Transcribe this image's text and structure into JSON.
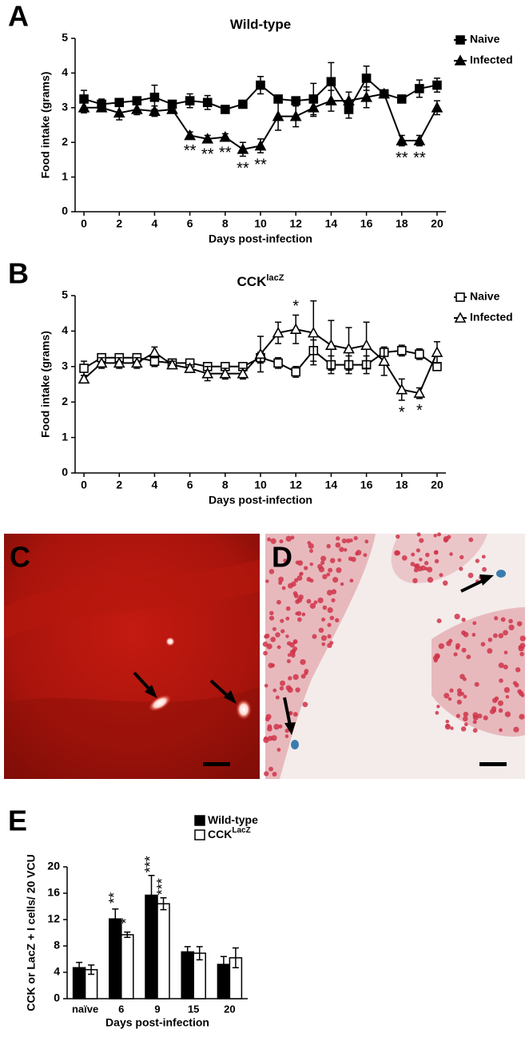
{
  "chart_data": [
    {
      "type": "line",
      "panel": "A",
      "title": "Wild-type",
      "xlabel": "Days post-infection",
      "ylabel": "Food intake (grams)",
      "x": [
        0,
        1,
        2,
        3,
        4,
        5,
        6,
        7,
        8,
        9,
        10,
        11,
        12,
        13,
        14,
        15,
        16,
        17,
        18,
        19,
        20
      ],
      "xlim": [
        -0.5,
        20.5
      ],
      "xticks": [
        0,
        2,
        4,
        6,
        8,
        10,
        12,
        14,
        16,
        18,
        20
      ],
      "ylim": [
        0,
        5
      ],
      "yticks": [
        0,
        1,
        2,
        3,
        4,
        5
      ],
      "grid": false,
      "series": [
        {
          "name": "Naive",
          "color": "#000000",
          "marker": "square",
          "filled": true,
          "values": [
            3.25,
            3.1,
            3.15,
            3.2,
            3.3,
            3.1,
            3.2,
            3.15,
            2.95,
            3.1,
            3.65,
            3.25,
            3.2,
            3.25,
            3.75,
            2.95,
            3.85,
            3.4,
            3.25,
            3.55,
            3.65
          ],
          "errors": [
            0.25,
            0.15,
            0.1,
            0.1,
            0.35,
            0.1,
            0.2,
            0.2,
            0.1,
            0.1,
            0.25,
            0.1,
            0.1,
            0.45,
            0.55,
            0.25,
            0.35,
            0.1,
            0.1,
            0.25,
            0.2
          ]
        },
        {
          "name": "Infected",
          "color": "#000000",
          "marker": "triangle",
          "filled": true,
          "values": [
            3.0,
            3.0,
            2.85,
            2.95,
            2.9,
            2.95,
            2.2,
            2.1,
            2.15,
            1.8,
            1.9,
            2.75,
            2.75,
            3.0,
            3.2,
            3.2,
            3.3,
            3.4,
            2.05,
            2.05,
            3.0
          ],
          "errors": [
            0.15,
            0.1,
            0.2,
            0.15,
            0.15,
            0.1,
            0.1,
            0.1,
            0.1,
            0.2,
            0.2,
            0.4,
            0.3,
            0.25,
            0.3,
            0.25,
            0.3,
            0.1,
            0.15,
            0.15,
            0.2
          ],
          "annotations": [
            null,
            null,
            null,
            null,
            null,
            null,
            "**",
            "**",
            "**",
            "**",
            "**",
            null,
            null,
            null,
            null,
            null,
            null,
            null,
            "**",
            "**",
            null
          ]
        }
      ]
    },
    {
      "type": "line",
      "panel": "B",
      "title": "CCK",
      "title_sup": "lacZ",
      "xlabel": "Days post-infection",
      "ylabel": "Food intake (grams)",
      "x": [
        0,
        1,
        2,
        3,
        4,
        5,
        6,
        7,
        8,
        9,
        10,
        11,
        12,
        13,
        14,
        15,
        16,
        17,
        18,
        19,
        20
      ],
      "xlim": [
        -0.5,
        20.5
      ],
      "xticks": [
        0,
        2,
        4,
        6,
        8,
        10,
        12,
        14,
        16,
        18,
        20
      ],
      "ylim": [
        0,
        5
      ],
      "yticks": [
        0,
        1,
        2,
        3,
        4,
        5
      ],
      "grid": false,
      "series": [
        {
          "name": "Naive",
          "color": "#000000",
          "marker": "square",
          "filled": false,
          "values": [
            2.95,
            3.25,
            3.25,
            3.25,
            3.15,
            3.1,
            3.1,
            3.0,
            3.0,
            3.0,
            3.25,
            3.1,
            2.85,
            3.45,
            3.05,
            3.05,
            3.05,
            3.4,
            3.45,
            3.35,
            3.0
          ],
          "errors": [
            0.2,
            0.1,
            0.1,
            0.1,
            0.15,
            0.1,
            0.1,
            0.1,
            0.1,
            0.1,
            0.15,
            0.15,
            0.15,
            0.3,
            0.25,
            0.25,
            0.25,
            0.1,
            0.15,
            0.15,
            0.1
          ]
        },
        {
          "name": "Infected",
          "color": "#000000",
          "marker": "triangle",
          "filled": false,
          "values": [
            2.65,
            3.1,
            3.1,
            3.1,
            3.4,
            3.05,
            2.95,
            2.8,
            2.8,
            2.8,
            3.35,
            3.95,
            4.05,
            3.95,
            3.6,
            3.5,
            3.6,
            3.15,
            2.35,
            2.25,
            3.4
          ],
          "errors": [
            0.1,
            0.15,
            0.15,
            0.15,
            0.15,
            0.1,
            0.1,
            0.2,
            0.15,
            0.15,
            0.5,
            0.3,
            0.4,
            0.9,
            0.7,
            0.6,
            0.65,
            0.4,
            0.3,
            0.15,
            0.3
          ],
          "annotations": [
            null,
            null,
            null,
            null,
            null,
            null,
            null,
            null,
            null,
            null,
            null,
            null,
            "*",
            null,
            null,
            null,
            null,
            null,
            "*",
            "*",
            null
          ]
        }
      ]
    },
    {
      "type": "bar",
      "panel": "E",
      "xlabel": "Days post-infection",
      "ylabel": "CCK or LacZ + I cells/ 20 VCU",
      "categories": [
        "naïve",
        "6",
        "9",
        "15",
        "20"
      ],
      "ylim": [
        0,
        20
      ],
      "yticks": [
        0,
        4,
        8,
        12,
        16,
        20
      ],
      "grid": false,
      "series": [
        {
          "name": "Wild-type",
          "color": "#000000",
          "filled": true,
          "values": [
            4.7,
            12.1,
            15.7,
            7.1,
            5.2
          ],
          "errors": [
            0.8,
            1.5,
            3.0,
            0.8,
            1.2
          ],
          "annotations": [
            null,
            "**",
            "***",
            null,
            null
          ]
        },
        {
          "name": "CCK",
          "name_sup": "LacZ",
          "color": "#000000",
          "filled": false,
          "values": [
            4.4,
            9.7,
            14.4,
            6.9,
            6.2
          ],
          "errors": [
            0.7,
            0.4,
            0.9,
            1.0,
            1.5
          ],
          "annotations": [
            null,
            "*",
            "***",
            null,
            null
          ]
        }
      ]
    }
  ],
  "images": [
    {
      "panel": "C"
    },
    {
      "panel": "D"
    }
  ]
}
